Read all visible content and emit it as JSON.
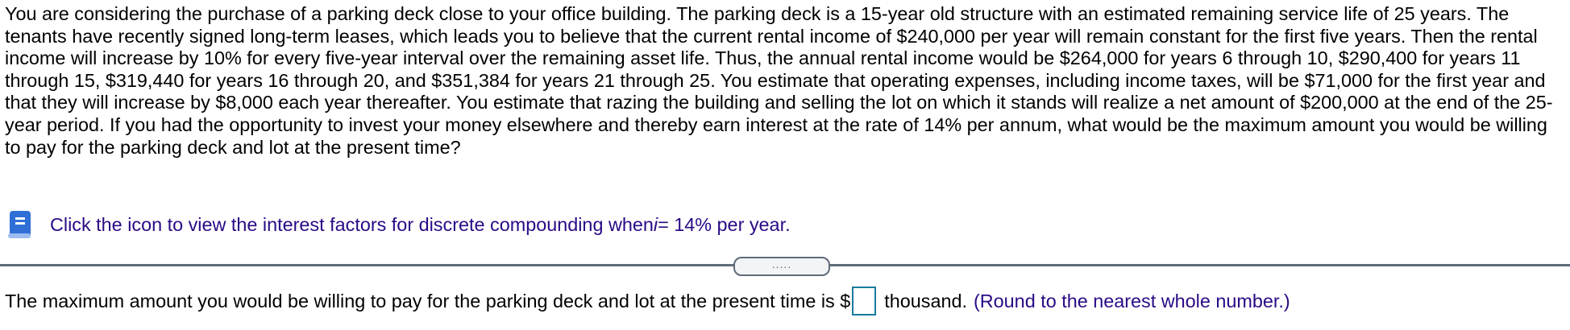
{
  "problem": {
    "text": "You are considering the purchase of a parking deck close to your office building. The parking deck is a 15-year old structure with an estimated remaining service life of 25 years. The tenants have recently signed long-term leases, which leads you to believe that the current rental income of $240,000 per year will remain constant for the first five years. Then the rental income will increase by 10% for every five-year interval over the remaining asset life. Thus, the annual rental income would be $264,000 for years 6 through 10, $290,400 for years 11 through 15, $319,440 for years 16 through 20, and $351,384 for years 21 through 25. You estimate that operating expenses, including income taxes, will be $71,000 for the first year and that they will increase by $8,000 each year thereafter. You estimate that razing the building and selling the lot on which it stands will realize a net amount of $200,000 at the end of the 25-year period. If you had the opportunity to invest your money elsewhere and thereby earn interest at the rate of 14% per annum, what would be the maximum amount you would be willing to pay for the parking deck and lot at the present time?"
  },
  "hint": {
    "icon": "book-icon",
    "text_before": "Click the icon to view the interest factors for discrete compounding when ",
    "variable": "i",
    "text_after": " = 14% per year."
  },
  "divider": {
    "handle_label": "....."
  },
  "answer": {
    "prefix": "The maximum amount you would be willing to pay for the parking deck and lot at the present time is $",
    "value": "",
    "suffix": "thousand.",
    "note": "(Round to the nearest whole number.)"
  },
  "colors": {
    "link": "#2a0a86",
    "input_border": "#1a7a9a",
    "divider": "#5f6b78",
    "icon": "#2f6fd6"
  }
}
